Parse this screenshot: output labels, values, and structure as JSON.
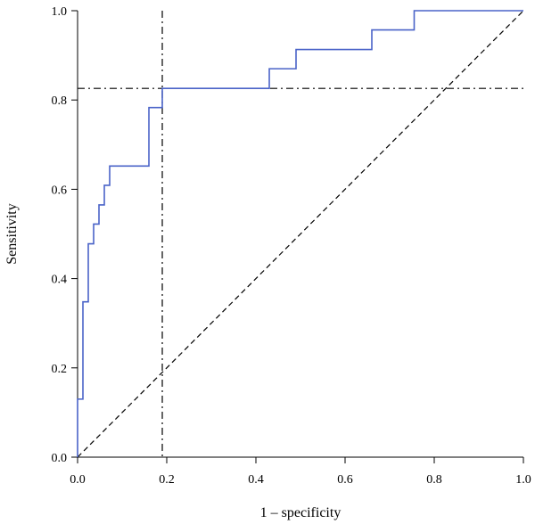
{
  "chart_data": {
    "type": "line",
    "xlabel": "1 – specificity",
    "ylabel": "Sensitivity",
    "xlim": [
      0.0,
      1.0
    ],
    "ylim": [
      0.0,
      1.0
    ],
    "x_ticks": [
      "0.0",
      "0.2",
      "0.4",
      "0.6",
      "0.8",
      "1.0"
    ],
    "y_ticks": [
      "0.0",
      "0.2",
      "0.4",
      "0.6",
      "0.8",
      "1.0"
    ],
    "grid": false,
    "legend": "none",
    "series": [
      {
        "style": "step",
        "color": "#4a63c8",
        "x": [
          0,
          0,
          0.012,
          0.012,
          0.024,
          0.024,
          0.036,
          0.036,
          0.048,
          0.048,
          0.06,
          0.06,
          0.072,
          0.072,
          0.084,
          0.084,
          0.16,
          0.16,
          0.19,
          0.19,
          0.43,
          0.43,
          0.49,
          0.49,
          0.66,
          0.66,
          0.755,
          0.755,
          1.0
        ],
        "y": [
          0,
          0.13,
          0.13,
          0.348,
          0.348,
          0.478,
          0.478,
          0.522,
          0.522,
          0.565,
          0.565,
          0.609,
          0.609,
          0.652,
          0.652,
          0.652,
          0.652,
          0.783,
          0.783,
          0.826,
          0.826,
          0.87,
          0.87,
          0.913,
          0.913,
          0.957,
          0.957,
          1.0,
          1.0
        ]
      }
    ],
    "reference_lines": [
      {
        "kind": "diagonal",
        "x": [
          0,
          1
        ],
        "y": [
          0,
          1
        ],
        "style": "dashed",
        "color": "#000000"
      },
      {
        "kind": "vertical",
        "x": 0.19,
        "style": "dashdot",
        "color": "#000000"
      },
      {
        "kind": "horizontal",
        "y": 0.826,
        "style": "dashdot",
        "color": "#000000"
      }
    ]
  }
}
